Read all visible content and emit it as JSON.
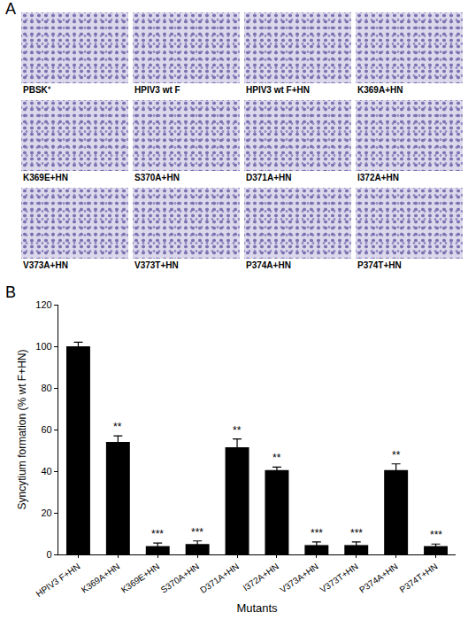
{
  "figure": {
    "panel_a": {
      "letter": "A",
      "images": [
        "PBSK⁺",
        "HPIV3 wt F",
        "HPIV3 wt F+HN",
        "K369A+HN",
        "K369E+HN",
        "S370A+HN",
        "D371A+HN",
        "I372A+HN",
        "V373A+HN",
        "V373T+HN",
        "P374A+HN",
        "P374T+HN"
      ]
    },
    "panel_b": {
      "letter": "B"
    }
  },
  "chart_data": {
    "type": "bar",
    "x_label": "Mutants",
    "y_label": "Syncytium formation (% wt F+HN)",
    "categories": [
      "HPIV3 F+HN",
      "K369A+HN",
      "K369E+HN",
      "S370A+HN",
      "D371A+HN",
      "I372A+HN",
      "V373A+HN",
      "V373T+HN",
      "P374A+HN",
      "P374T+HN"
    ],
    "values": [
      100,
      54,
      4,
      5,
      51.5,
      40.5,
      4.5,
      4.5,
      40.5,
      4
    ],
    "errors": [
      2,
      3,
      1.5,
      1.5,
      4,
      1.5,
      1.5,
      1.5,
      3,
      1
    ],
    "significance": [
      null,
      "**",
      "***",
      "***",
      "**",
      "**",
      "***",
      "***",
      "**",
      "***"
    ],
    "color": "#000000",
    "ylim": [
      0,
      120
    ],
    "yticks": [
      0,
      20,
      40,
      60,
      80,
      100,
      120
    ],
    "grid": false
  }
}
